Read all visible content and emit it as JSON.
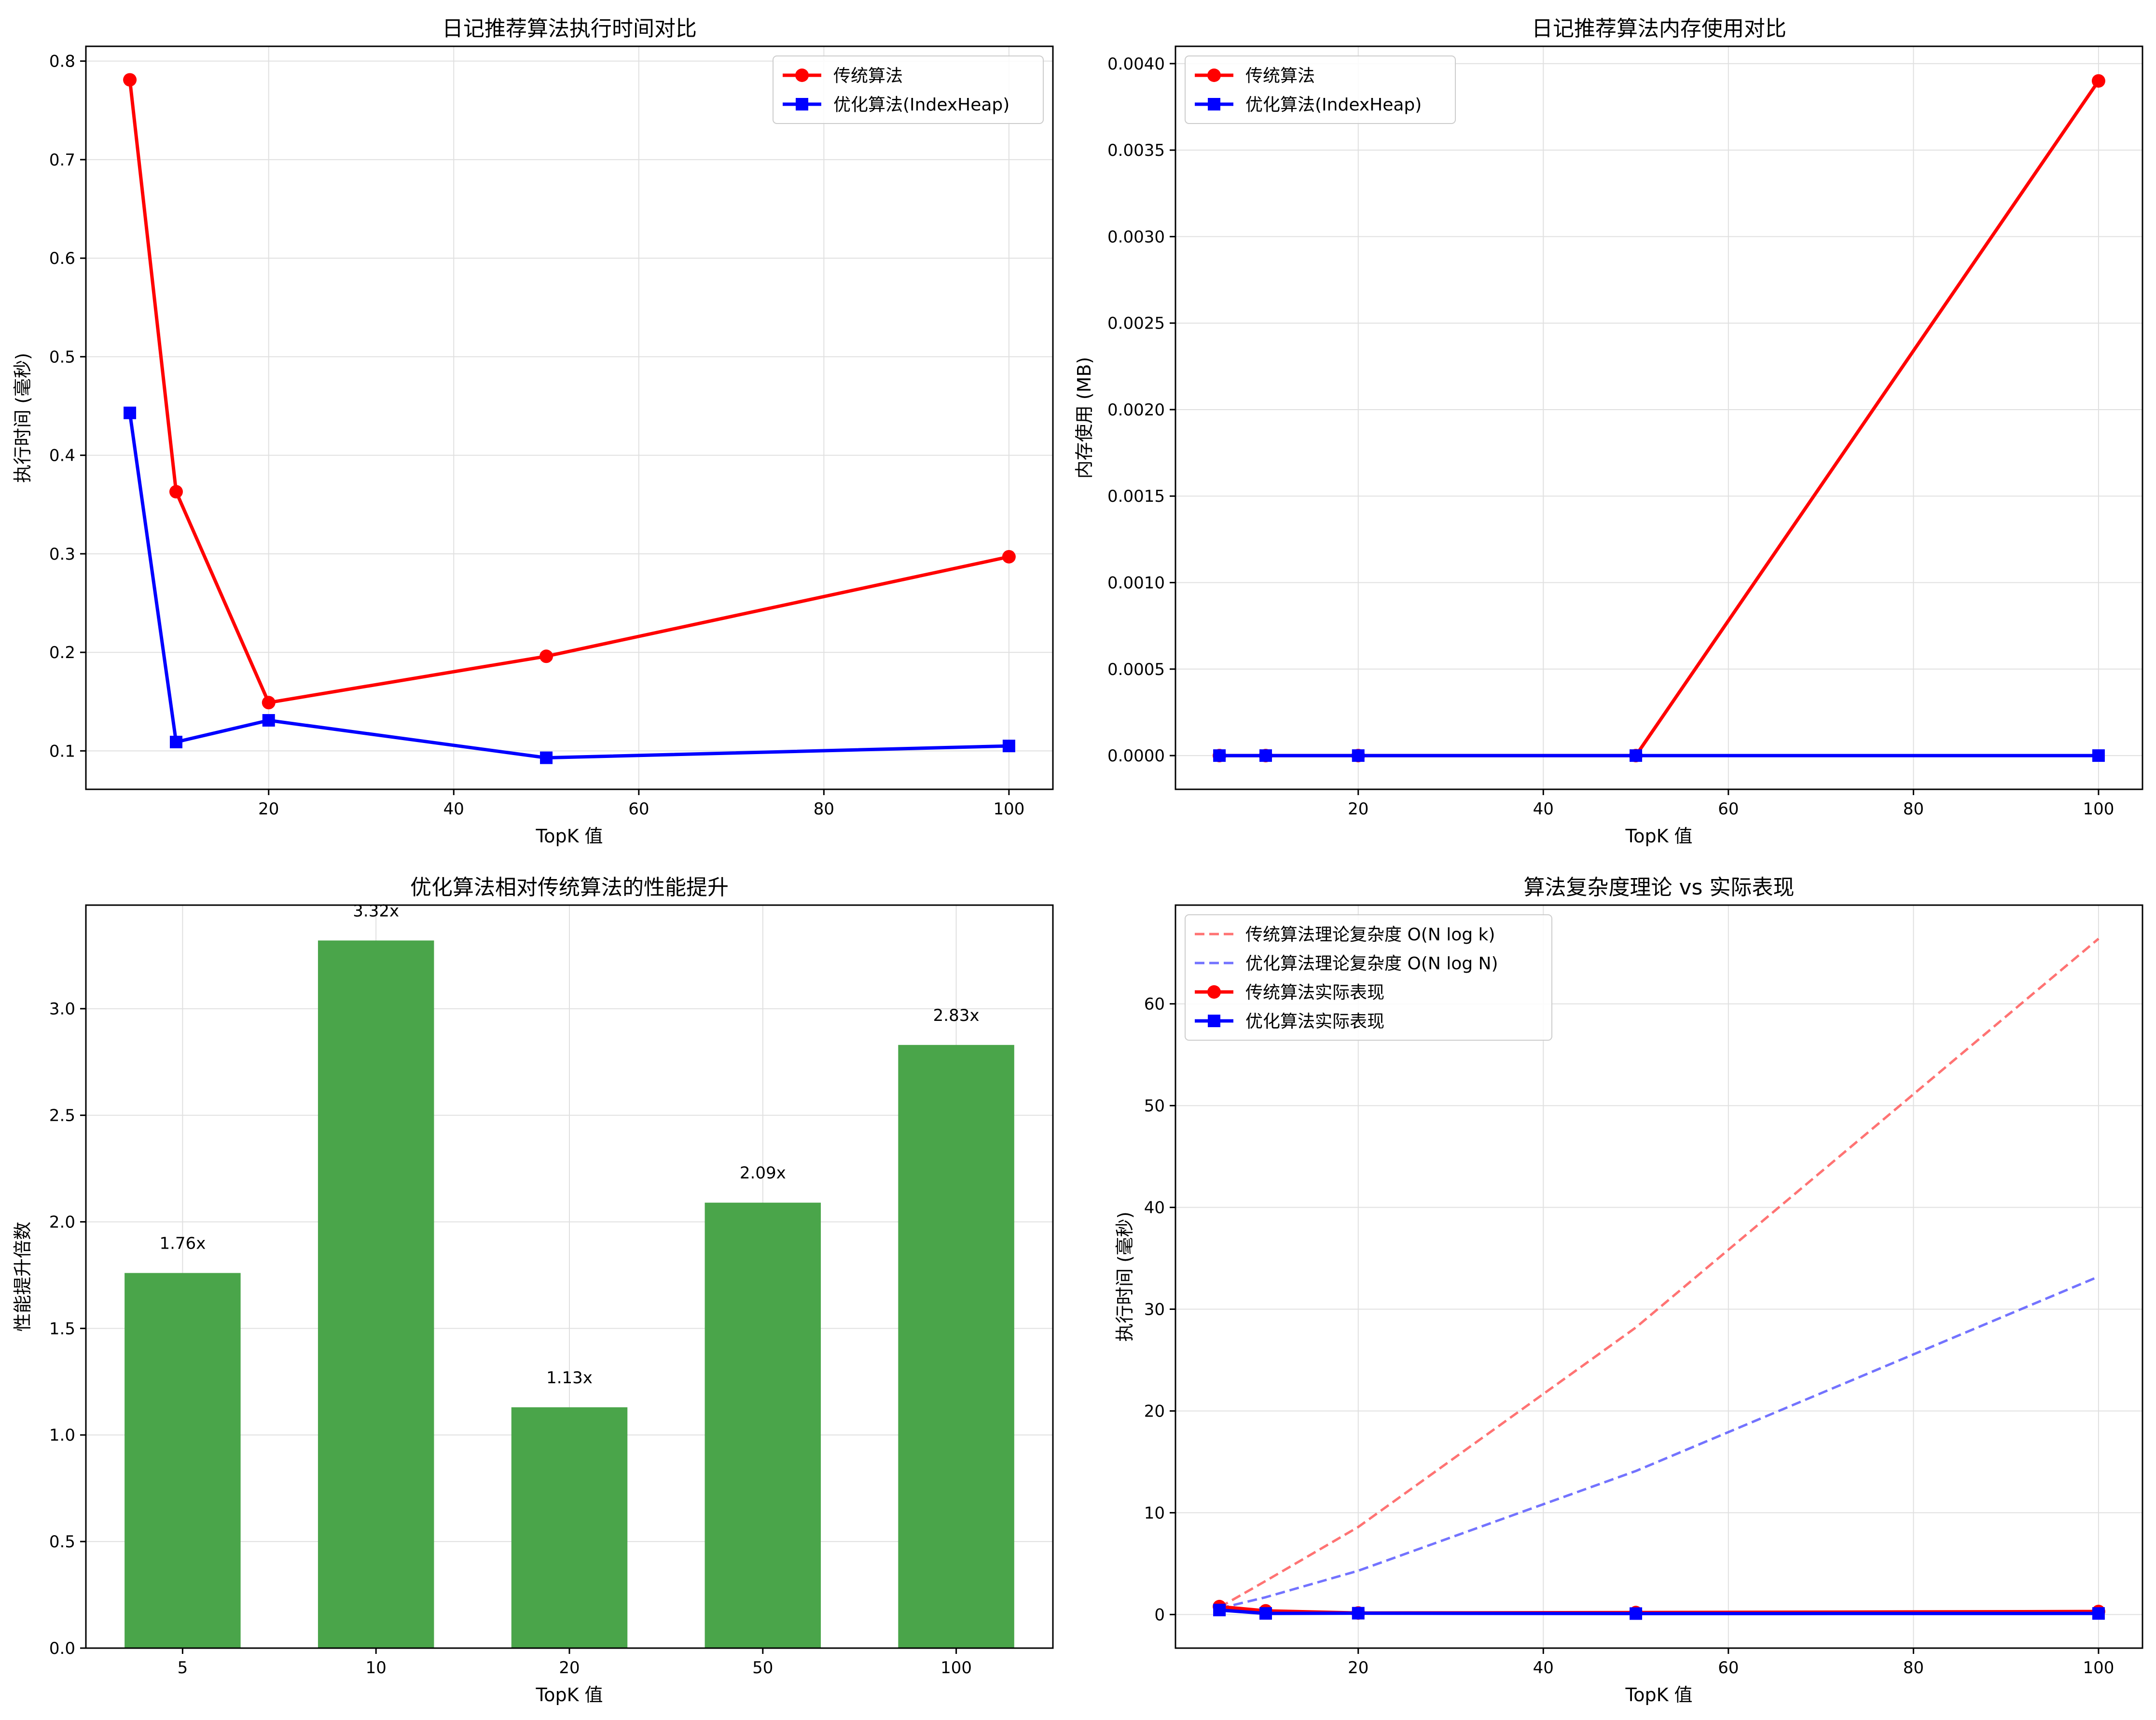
{
  "chart_data": [
    {
      "type": "line",
      "title": "日记推荐算法执行时间对比",
      "xlabel": "TopK 值",
      "ylabel": "执行时间 (毫秒)",
      "xlim": [
        0.25,
        104.75
      ],
      "ylim": [
        0.061,
        0.815
      ],
      "x_ticks": [
        20,
        40,
        60,
        80,
        100
      ],
      "y_ticks": [
        0.1,
        0.2,
        0.3,
        0.4,
        0.5,
        0.6,
        0.7,
        0.8
      ],
      "y_tick_labels": [
        "0.1",
        "0.2",
        "0.3",
        "0.4",
        "0.5",
        "0.6",
        "0.7",
        "0.8"
      ],
      "legend_position": "top-right",
      "grid": true,
      "series": [
        {
          "name": "传统算法",
          "color": "#ff0000",
          "marker": "circle",
          "x": [
            5,
            10,
            20,
            50,
            100
          ],
          "y": [
            0.781,
            0.363,
            0.149,
            0.196,
            0.297
          ]
        },
        {
          "name": "优化算法(IndexHeap)",
          "color": "#0000ff",
          "marker": "square",
          "x": [
            5,
            10,
            20,
            50,
            100
          ],
          "y": [
            0.443,
            0.109,
            0.131,
            0.093,
            0.105
          ]
        }
      ]
    },
    {
      "type": "line",
      "title": "日记推荐算法内存使用对比",
      "xlabel": "TopK 值",
      "ylabel": "内存使用 (MB)",
      "xlim": [
        0.25,
        104.75
      ],
      "ylim": [
        -0.000195,
        0.0041
      ],
      "x_ticks": [
        20,
        40,
        60,
        80,
        100
      ],
      "y_ticks": [
        0,
        0.0005,
        0.001,
        0.0015,
        0.002,
        0.0025,
        0.003,
        0.0035,
        0.004
      ],
      "y_tick_labels": [
        "0.0000",
        "0.0005",
        "0.0010",
        "0.0015",
        "0.0020",
        "0.0025",
        "0.0030",
        "0.0035",
        "0.0040"
      ],
      "legend_position": "top-left",
      "grid": true,
      "series": [
        {
          "name": "传统算法",
          "color": "#ff0000",
          "marker": "circle",
          "x": [
            5,
            10,
            20,
            50,
            100
          ],
          "y": [
            0,
            0,
            0,
            0,
            0.0039
          ]
        },
        {
          "name": "优化算法(IndexHeap)",
          "color": "#0000ff",
          "marker": "square",
          "x": [
            5,
            10,
            20,
            50,
            100
          ],
          "y": [
            0,
            0,
            0,
            0,
            0
          ]
        }
      ]
    },
    {
      "type": "bar",
      "title": "优化算法相对传统算法的性能提升",
      "xlabel": "TopK 值",
      "ylabel": "性能提升倍数",
      "categories": [
        "5",
        "10",
        "20",
        "50",
        "100"
      ],
      "values": [
        1.76,
        3.32,
        1.13,
        2.09,
        2.83
      ],
      "data_labels": [
        "1.76x",
        "3.32x",
        "1.13x",
        "2.09x",
        "2.83x"
      ],
      "ylim": [
        0,
        3.486
      ],
      "y_ticks": [
        0,
        0.5,
        1.0,
        1.5,
        2.0,
        2.5,
        3.0
      ],
      "y_tick_labels": [
        "0.0",
        "0.5",
        "1.0",
        "1.5",
        "2.0",
        "2.5",
        "3.0"
      ],
      "bar_color": "#4aa54a",
      "grid": true
    },
    {
      "type": "line",
      "title": "算法复杂度理论 vs 实际表现",
      "xlabel": "TopK 值",
      "ylabel": "执行时间 (毫秒)",
      "xlim": [
        0.25,
        104.75
      ],
      "ylim": [
        -3.3,
        69.7
      ],
      "x_ticks": [
        20,
        40,
        60,
        80,
        100
      ],
      "y_ticks": [
        0,
        10,
        20,
        30,
        40,
        50,
        60
      ],
      "y_tick_labels": [
        "0",
        "10",
        "20",
        "30",
        "40",
        "50",
        "60"
      ],
      "legend_position": "top-left",
      "grid": true,
      "series": [
        {
          "name": "传统算法理论复杂度 O(N log k)",
          "color": "#ff4444",
          "style": "dashed",
          "x": [
            5,
            10,
            20,
            50,
            100
          ],
          "y": [
            0.7,
            3.3,
            8.6,
            28.2,
            66.4
          ]
        },
        {
          "name": "优化算法理论复杂度 O(N log N)",
          "color": "#4444ff",
          "style": "dashed",
          "x": [
            5,
            10,
            20,
            50,
            100
          ],
          "y": [
            0.6,
            1.7,
            4.3,
            14.1,
            33.2
          ]
        },
        {
          "name": "传统算法实际表现",
          "color": "#ff0000",
          "marker": "circle",
          "x": [
            5,
            10,
            20,
            50,
            100
          ],
          "y": [
            0.781,
            0.363,
            0.149,
            0.196,
            0.297
          ]
        },
        {
          "name": "优化算法实际表现",
          "color": "#0000ff",
          "marker": "square",
          "x": [
            5,
            10,
            20,
            50,
            100
          ],
          "y": [
            0.443,
            0.109,
            0.131,
            0.093,
            0.105
          ]
        }
      ]
    }
  ]
}
